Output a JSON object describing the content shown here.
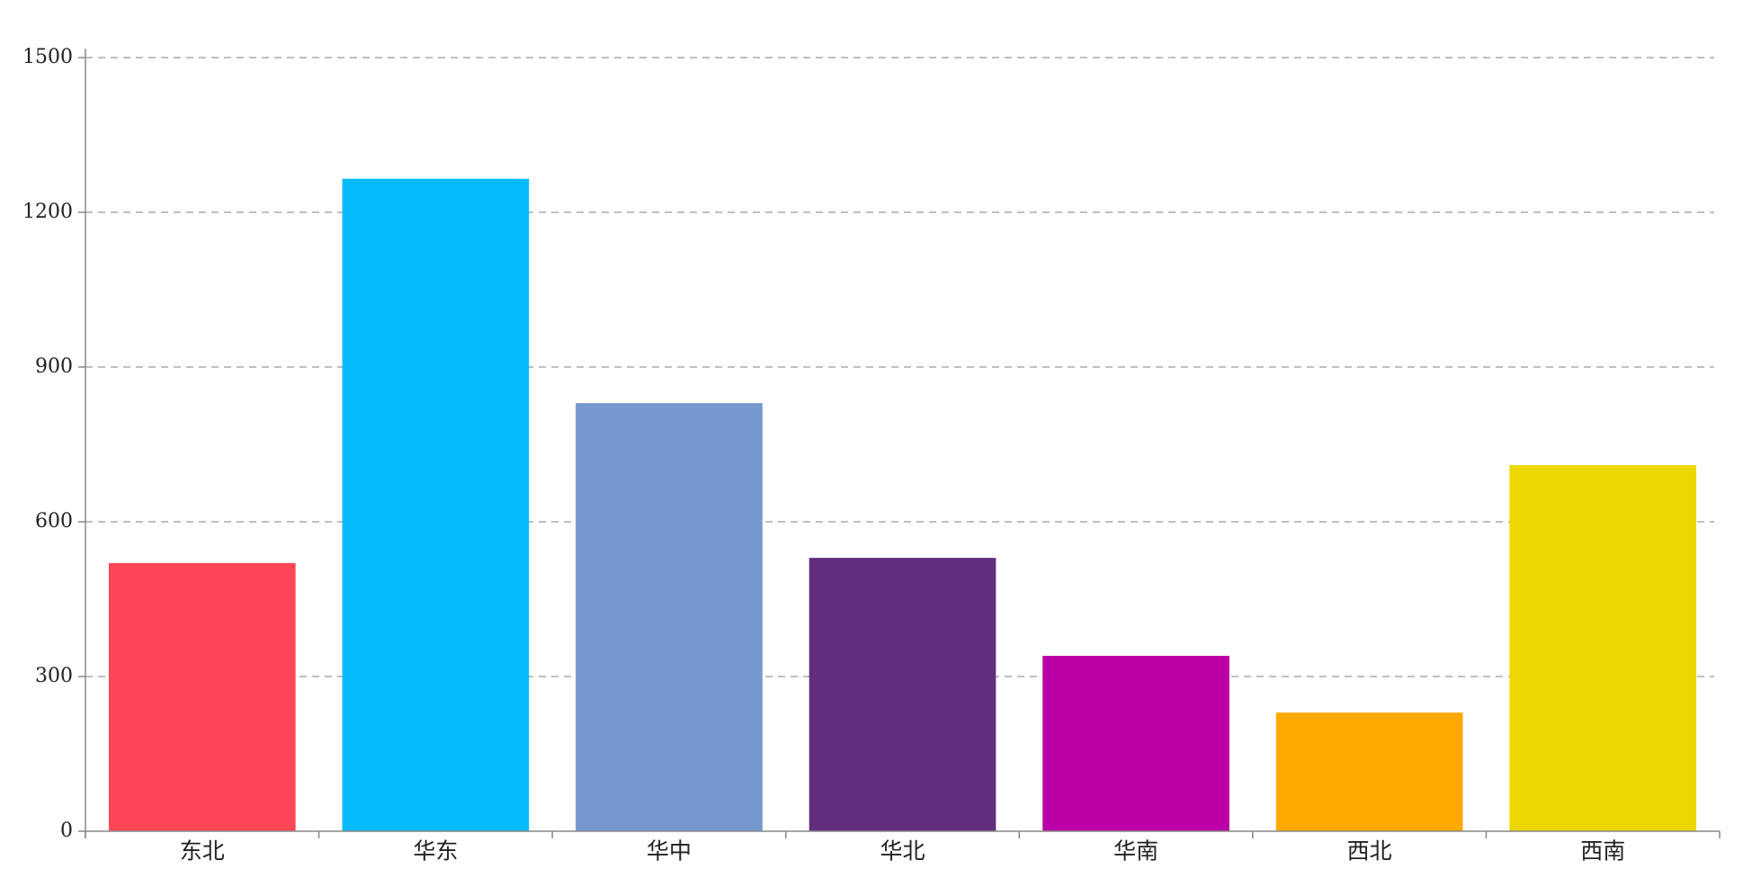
{
  "chart_data": {
    "type": "bar",
    "categories": [
      "东北",
      "华东",
      "华中",
      "华北",
      "华南",
      "西北",
      "西南"
    ],
    "values": [
      520,
      1265,
      830,
      530,
      340,
      230,
      710
    ],
    "colors": [
      "#fe4656",
      "#05bbfe",
      "#7599cf",
      "#622c7f",
      "#ba00a6",
      "#fea800",
      "#ecd700"
    ],
    "ylim": [
      0,
      1500
    ],
    "yticks": [
      0,
      300,
      600,
      900,
      1200,
      1500
    ],
    "grid": true
  }
}
